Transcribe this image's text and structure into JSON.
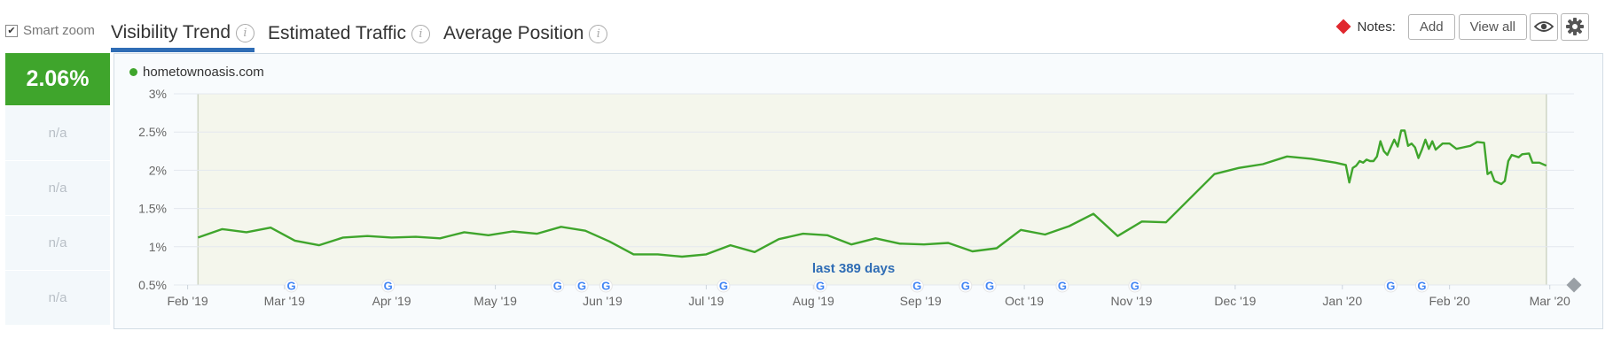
{
  "toolbar": {
    "smart_zoom_label": "Smart zoom",
    "smart_zoom_checked": true,
    "tabs": [
      {
        "label": "Visibility Trend",
        "active": true
      },
      {
        "label": "Estimated Traffic",
        "active": false
      },
      {
        "label": "Average Position",
        "active": false
      }
    ],
    "notes_label": "Notes:",
    "add_label": "Add",
    "view_all_label": "View all",
    "eye_icon": "eye-icon",
    "gear_icon": "gear-icon"
  },
  "sidebar": {
    "current_value": "2.06%",
    "rows": [
      "n/a",
      "n/a",
      "n/a",
      "n/a"
    ]
  },
  "colors": {
    "accent": "#3fa52c",
    "tab_underline": "#2f6db5",
    "note_marker": "#e0282e",
    "plot_band": "#f4f6ec"
  },
  "chart_data": {
    "type": "line",
    "series": [
      {
        "name": "hometownoasis.com",
        "color": "#3fa52c",
        "points": [
          [
            "2019-02-04",
            1.12
          ],
          [
            "2019-02-11",
            1.23
          ],
          [
            "2019-02-18",
            1.19
          ],
          [
            "2019-02-25",
            1.25
          ],
          [
            "2019-03-04",
            1.08
          ],
          [
            "2019-03-11",
            1.02
          ],
          [
            "2019-03-18",
            1.12
          ],
          [
            "2019-03-25",
            1.14
          ],
          [
            "2019-04-01",
            1.12
          ],
          [
            "2019-04-08",
            1.13
          ],
          [
            "2019-04-15",
            1.11
          ],
          [
            "2019-04-22",
            1.19
          ],
          [
            "2019-04-29",
            1.15
          ],
          [
            "2019-05-06",
            1.2
          ],
          [
            "2019-05-13",
            1.17
          ],
          [
            "2019-05-20",
            1.26
          ],
          [
            "2019-05-27",
            1.21
          ],
          [
            "2019-06-03",
            1.07
          ],
          [
            "2019-06-10",
            0.9
          ],
          [
            "2019-06-17",
            0.9
          ],
          [
            "2019-06-24",
            0.87
          ],
          [
            "2019-07-01",
            0.9
          ],
          [
            "2019-07-08",
            1.02
          ],
          [
            "2019-07-15",
            0.93
          ],
          [
            "2019-07-22",
            1.1
          ],
          [
            "2019-07-29",
            1.17
          ],
          [
            "2019-08-05",
            1.15
          ],
          [
            "2019-08-12",
            1.03
          ],
          [
            "2019-08-19",
            1.11
          ],
          [
            "2019-08-26",
            1.04
          ],
          [
            "2019-09-02",
            1.03
          ],
          [
            "2019-09-09",
            1.05
          ],
          [
            "2019-09-16",
            0.94
          ],
          [
            "2019-09-23",
            0.98
          ],
          [
            "2019-09-30",
            1.22
          ],
          [
            "2019-10-07",
            1.16
          ],
          [
            "2019-10-14",
            1.27
          ],
          [
            "2019-10-21",
            1.43
          ],
          [
            "2019-10-28",
            1.14
          ],
          [
            "2019-11-04",
            1.33
          ],
          [
            "2019-11-11",
            1.32
          ],
          [
            "2019-11-25",
            1.95
          ],
          [
            "2019-12-02",
            2.03
          ],
          [
            "2019-12-09",
            2.08
          ],
          [
            "2019-12-16",
            2.18
          ],
          [
            "2019-12-23",
            2.15
          ],
          [
            "2019-12-30",
            2.1
          ],
          [
            "2020-01-02",
            2.07
          ],
          [
            "2020-01-03",
            1.84
          ],
          [
            "2020-01-04",
            2.03
          ],
          [
            "2020-01-05",
            2.06
          ],
          [
            "2020-01-06",
            2.12
          ],
          [
            "2020-01-07",
            2.1
          ],
          [
            "2020-01-08",
            2.14
          ],
          [
            "2020-01-09",
            2.12
          ],
          [
            "2020-01-10",
            2.12
          ],
          [
            "2020-01-11",
            2.18
          ],
          [
            "2020-01-12",
            2.38
          ],
          [
            "2020-01-13",
            2.25
          ],
          [
            "2020-01-14",
            2.2
          ],
          [
            "2020-01-15",
            2.3
          ],
          [
            "2020-01-16",
            2.4
          ],
          [
            "2020-01-17",
            2.31
          ],
          [
            "2020-01-18",
            2.52
          ],
          [
            "2020-01-19",
            2.52
          ],
          [
            "2020-01-20",
            2.32
          ],
          [
            "2020-01-21",
            2.35
          ],
          [
            "2020-01-22",
            2.3
          ],
          [
            "2020-01-23",
            2.16
          ],
          [
            "2020-01-24",
            2.27
          ],
          [
            "2020-01-25",
            2.4
          ],
          [
            "2020-01-26",
            2.28
          ],
          [
            "2020-01-27",
            2.38
          ],
          [
            "2020-01-28",
            2.27
          ],
          [
            "2020-01-30",
            2.35
          ],
          [
            "2020-02-01",
            2.35
          ],
          [
            "2020-02-03",
            2.28
          ],
          [
            "2020-02-05",
            2.3
          ],
          [
            "2020-02-07",
            2.32
          ],
          [
            "2020-02-09",
            2.37
          ],
          [
            "2020-02-11",
            2.36
          ],
          [
            "2020-02-12",
            1.95
          ],
          [
            "2020-02-13",
            1.98
          ],
          [
            "2020-02-14",
            1.86
          ],
          [
            "2020-02-16",
            1.82
          ],
          [
            "2020-02-17",
            1.86
          ],
          [
            "2020-02-18",
            2.12
          ],
          [
            "2020-02-19",
            2.2
          ],
          [
            "2020-02-21",
            2.17
          ],
          [
            "2020-02-22",
            2.21
          ],
          [
            "2020-02-24",
            2.22
          ],
          [
            "2020-02-25",
            2.1
          ],
          [
            "2020-02-27",
            2.1
          ],
          [
            "2020-02-29",
            2.06
          ]
        ]
      }
    ],
    "x_range": [
      "2019-01-28",
      "2020-03-08"
    ],
    "y_range": [
      0.5,
      3.0
    ],
    "y_ticks": [
      {
        "value": 0.5,
        "label": "0.5%"
      },
      {
        "value": 1.0,
        "label": "1%"
      },
      {
        "value": 1.5,
        "label": "1.5%"
      },
      {
        "value": 2.0,
        "label": "2%"
      },
      {
        "value": 2.5,
        "label": "2.5%"
      },
      {
        "value": 3.0,
        "label": "3%"
      }
    ],
    "x_ticks": [
      {
        "date": "2019-02-01",
        "label": "Feb '19"
      },
      {
        "date": "2019-03-01",
        "label": "Mar '19"
      },
      {
        "date": "2019-04-01",
        "label": "Apr '19"
      },
      {
        "date": "2019-05-01",
        "label": "May '19"
      },
      {
        "date": "2019-06-01",
        "label": "Jun '19"
      },
      {
        "date": "2019-07-01",
        "label": "Jul '19"
      },
      {
        "date": "2019-08-01",
        "label": "Aug '19"
      },
      {
        "date": "2019-09-01",
        "label": "Sep '19"
      },
      {
        "date": "2019-10-01",
        "label": "Oct '19"
      },
      {
        "date": "2019-11-01",
        "label": "Nov '19"
      },
      {
        "date": "2019-12-01",
        "label": "Dec '19"
      },
      {
        "date": "2020-01-01",
        "label": "Jan '20"
      },
      {
        "date": "2020-02-01",
        "label": "Feb '20"
      },
      {
        "date": "2020-03-01",
        "label": "Mar '20"
      }
    ],
    "period": {
      "start": "2019-02-04",
      "end": "2020-02-29",
      "label": "last 389 days"
    },
    "google_update_markers": [
      "2019-03-03",
      "2019-03-31",
      "2019-05-19",
      "2019-05-26",
      "2019-06-02",
      "2019-07-06",
      "2019-08-03",
      "2019-08-31",
      "2019-09-14",
      "2019-09-21",
      "2019-10-12",
      "2019-11-02",
      "2020-01-15",
      "2020-01-24"
    ],
    "note_marker_date": "2020-03-08",
    "grid": true
  }
}
